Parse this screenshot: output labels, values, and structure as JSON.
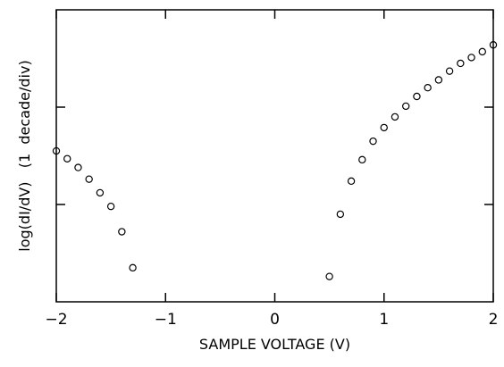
{
  "chart_data": {
    "type": "scatter",
    "title": "",
    "xlabel": "SAMPLE VOLTAGE (V)",
    "ylabel": "log(dI/dV)   (1  decade/div)",
    "xlim": [
      -2,
      2
    ],
    "ylim": [
      0,
      3
    ],
    "x_ticks": [
      -2,
      -1,
      0,
      1,
      2
    ],
    "x_tick_labels": [
      "−2",
      "−1",
      "0",
      "1",
      "2"
    ],
    "y_ticks": [
      1,
      2
    ],
    "y_tick_labels": [],
    "grid": false,
    "legend": "none",
    "marker": "open-circle",
    "series": [
      {
        "x": [
          -2.0,
          -1.9,
          -1.8,
          -1.7,
          -1.6,
          -1.5,
          -1.4,
          -1.3
        ],
        "y": [
          1.55,
          1.47,
          1.38,
          1.26,
          1.12,
          0.98,
          0.72,
          0.35
        ]
      },
      {
        "x": [
          0.5,
          0.6,
          0.7,
          0.8,
          0.9,
          1.0,
          1.1,
          1.2,
          1.3,
          1.4,
          1.5,
          1.6,
          1.7,
          1.8,
          1.9,
          2.0
        ],
        "y": [
          0.26,
          0.9,
          1.24,
          1.46,
          1.65,
          1.79,
          1.9,
          2.01,
          2.11,
          2.2,
          2.28,
          2.37,
          2.45,
          2.51,
          2.57,
          2.64
        ]
      }
    ]
  }
}
